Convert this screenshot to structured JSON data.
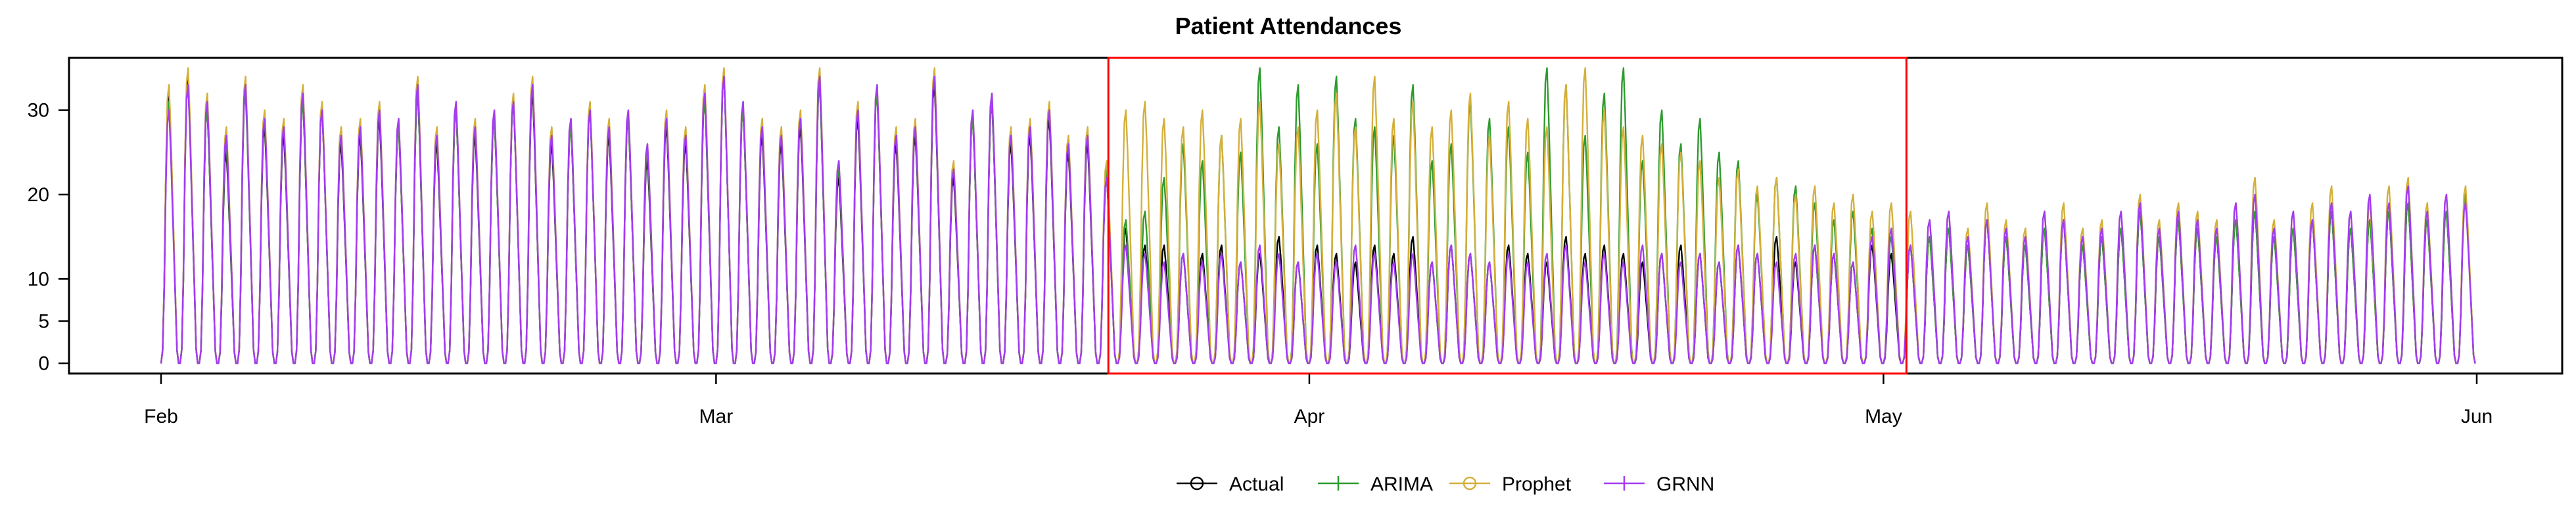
{
  "chart_data": {
    "type": "line",
    "title": "Patient Attendances",
    "xlabel": "",
    "ylabel": "",
    "x_unit": "day index (0 = 1 Feb)",
    "xlim": [
      0,
      120
    ],
    "ylim": [
      -1.2,
      36.2
    ],
    "x_ticks": [
      {
        "value": 0,
        "label": "Feb"
      },
      {
        "value": 29,
        "label": "Mar"
      },
      {
        "value": 60,
        "label": "Apr"
      },
      {
        "value": 90,
        "label": "May"
      },
      {
        "value": 121,
        "label": "Jun"
      }
    ],
    "y_ticks": [
      {
        "value": 0,
        "label": "0"
      },
      {
        "value": 5,
        "label": "5"
      },
      {
        "value": 10,
        "label": "10"
      },
      {
        "value": 20,
        "label": "20"
      },
      {
        "value": 30,
        "label": "30"
      }
    ],
    "highlight_region": {
      "x_start": 49.5,
      "x_end": 91.2,
      "color": "#ff0000"
    },
    "legend_position": "bottom",
    "series": [
      {
        "name": "Actual",
        "color": "#000000",
        "marker": "circle",
        "profile": "actual"
      },
      {
        "name": "ARIMA",
        "color": "#2e9b2e",
        "marker": "plus",
        "profile": "arima"
      },
      {
        "name": "Prophet",
        "color": "#d4b03c",
        "marker": "circle",
        "profile": "prophet"
      },
      {
        "name": "GRNN",
        "color": "#a23cf0",
        "marker": "plus",
        "profile": "grnn"
      }
    ],
    "daily_peak_profile": {
      "description": "approximate daily peak attendances read from the chart; each day shows an intraday cycle from 0 up to the peak",
      "actual": [
        32,
        34,
        30,
        25,
        33,
        28,
        27,
        31,
        30,
        26,
        27,
        29,
        28,
        32,
        26,
        30,
        27,
        29,
        31,
        32,
        26,
        28,
        30,
        27,
        29,
        24,
        28,
        26,
        31,
        34,
        30,
        27,
        26,
        28,
        33,
        22,
        29,
        32,
        26,
        27,
        33,
        22,
        29,
        31,
        26,
        27,
        29,
        25,
        26,
        22,
        16,
        14,
        14,
        13,
        13,
        14,
        12,
        13,
        15,
        12,
        14,
        13,
        12,
        14,
        13,
        15,
        12,
        14,
        13,
        12,
        14,
        13,
        12,
        15,
        13,
        14,
        13,
        12,
        13,
        14,
        13,
        12,
        14,
        13,
        15,
        12,
        14,
        13,
        12,
        14,
        13,
        14,
        15,
        16,
        14,
        17,
        15,
        14,
        16,
        17,
        14,
        15,
        16,
        18,
        15,
        17,
        16,
        15,
        17,
        18,
        15,
        16,
        17,
        18,
        16,
        17,
        18,
        19,
        17,
        18,
        20
      ],
      "arima": [
        31,
        33,
        30,
        26,
        32,
        29,
        28,
        31,
        30,
        27,
        28,
        30,
        28,
        32,
        27,
        30,
        28,
        29,
        31,
        33,
        27,
        28,
        30,
        28,
        29,
        25,
        29,
        27,
        31,
        34,
        30,
        28,
        27,
        29,
        33,
        23,
        30,
        32,
        27,
        28,
        34,
        23,
        29,
        31,
        27,
        28,
        30,
        26,
        27,
        23,
        17,
        18,
        22,
        26,
        24,
        27,
        25,
        35,
        28,
        33,
        26,
        34,
        29,
        28,
        27,
        33,
        24,
        26,
        31,
        29,
        28,
        25,
        35,
        33,
        27,
        32,
        35,
        24,
        30,
        26,
        29,
        25,
        24,
        20,
        22,
        21,
        19,
        17,
        18,
        16,
        15,
        14,
        15,
        16,
        14,
        17,
        15,
        14,
        16,
        17,
        14,
        15,
        16,
        18,
        15,
        17,
        16,
        15,
        17,
        18,
        15,
        16,
        17,
        18,
        16,
        17,
        18,
        19,
        17,
        18,
        20
      ],
      "prophet": [
        33,
        35,
        32,
        28,
        34,
        30,
        29,
        33,
        31,
        28,
        29,
        31,
        29,
        34,
        28,
        31,
        29,
        30,
        32,
        34,
        28,
        29,
        31,
        29,
        30,
        26,
        30,
        28,
        33,
        35,
        31,
        29,
        28,
        30,
        35,
        24,
        31,
        33,
        28,
        29,
        35,
        24,
        30,
        32,
        28,
        29,
        31,
        27,
        28,
        24,
        30,
        31,
        29,
        28,
        30,
        27,
        29,
        31,
        26,
        28,
        30,
        32,
        28,
        34,
        29,
        31,
        28,
        30,
        32,
        27,
        31,
        29,
        28,
        33,
        35,
        30,
        28,
        27,
        26,
        25,
        24,
        22,
        23,
        21,
        22,
        20,
        21,
        19,
        20,
        18,
        19,
        18,
        17,
        18,
        16,
        19,
        17,
        16,
        18,
        19,
        16,
        17,
        18,
        20,
        17,
        19,
        18,
        17,
        19,
        22,
        17,
        18,
        19,
        21,
        18,
        19,
        21,
        22,
        19,
        20,
        21
      ],
      "grnn": [
        30,
        33,
        31,
        27,
        33,
        29,
        28,
        32,
        30,
        27,
        28,
        30,
        29,
        33,
        27,
        31,
        28,
        30,
        31,
        33,
        27,
        29,
        30,
        28,
        30,
        26,
        29,
        27,
        32,
        34,
        31,
        28,
        27,
        29,
        34,
        24,
        30,
        33,
        27,
        28,
        34,
        23,
        30,
        32,
        27,
        28,
        30,
        26,
        27,
        22,
        14,
        13,
        12,
        13,
        12,
        13,
        12,
        14,
        13,
        12,
        13,
        12,
        14,
        13,
        12,
        13,
        12,
        14,
        13,
        12,
        13,
        12,
        13,
        14,
        12,
        13,
        12,
        14,
        13,
        12,
        13,
        12,
        14,
        13,
        12,
        13,
        14,
        13,
        12,
        15,
        16,
        14,
        17,
        18,
        15,
        17,
        16,
        15,
        18,
        17,
        15,
        16,
        18,
        19,
        16,
        18,
        17,
        16,
        19,
        20,
        16,
        18,
        17,
        19,
        18,
        20,
        19,
        21,
        18,
        20,
        19
      ]
    }
  }
}
